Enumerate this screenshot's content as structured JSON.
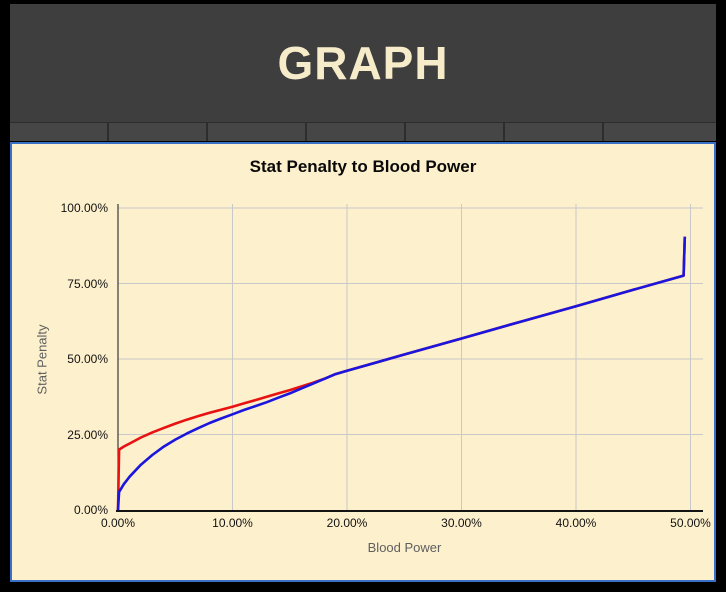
{
  "header": {
    "title": "GRAPH",
    "tab_count": 7
  },
  "colors": {
    "page_background": "#000000",
    "header_background": "#3e3e3e",
    "header_title": "#f7ecc9",
    "tab_cell": "#464646",
    "tab_divider": "#2d2d2d",
    "panel_background": "#fdf0cd",
    "panel_border": "#3a6fc8",
    "gridline": "#c9c9c9",
    "y_axis_line": "#3a3a3a",
    "x_axis_line": "#141414",
    "tick_label": "#121212",
    "axis_title": "#5f5f5f"
  },
  "chart_data": {
    "type": "line",
    "title": "Stat Penalty to Blood Power",
    "xlabel": "Blood Power",
    "ylabel": "Stat Penalty",
    "xlim": [
      0,
      50.5
    ],
    "ylim": [
      0,
      100
    ],
    "grid": true,
    "legend_position": "none",
    "x_ticks": {
      "values": [
        0,
        10,
        20,
        30,
        40,
        50
      ],
      "labels": [
        "0.00%",
        "10.00%",
        "20.00%",
        "30.00%",
        "40.00%",
        "50.00%"
      ]
    },
    "y_ticks": {
      "values": [
        0,
        25,
        50,
        75,
        100
      ],
      "labels": [
        "0.00%",
        "25.00%",
        "50.00%",
        "75.00%",
        "100.00%"
      ]
    },
    "series": [
      {
        "name": "red-penalty-curve",
        "color": "#e81212",
        "points": [
          [
            0,
            0
          ],
          [
            0.1,
            20
          ],
          [
            0.5,
            21
          ],
          [
            1,
            22
          ],
          [
            2,
            24
          ],
          [
            3,
            25.7
          ],
          [
            4,
            27.2
          ],
          [
            5,
            28.6
          ],
          [
            6,
            29.9
          ],
          [
            7,
            31.1
          ],
          [
            8,
            32.2
          ],
          [
            9,
            33.2
          ],
          [
            10,
            34.2
          ],
          [
            11,
            35.3
          ],
          [
            12,
            36.4
          ],
          [
            13,
            37.5
          ],
          [
            14,
            38.6
          ],
          [
            15,
            39.7
          ],
          [
            16,
            40.9
          ],
          [
            17,
            42.1
          ],
          [
            18,
            43.4
          ],
          [
            19,
            45
          ],
          [
            20,
            46.1
          ],
          [
            25,
            51.5
          ],
          [
            30,
            56.8
          ],
          [
            35,
            62.2
          ],
          [
            40,
            67.5
          ],
          [
            45,
            72.9
          ],
          [
            49.4,
            77.6
          ],
          [
            49.5,
            90.5
          ]
        ]
      },
      {
        "name": "blue-penalty-curve",
        "color": "#1b16dd",
        "points": [
          [
            0,
            0
          ],
          [
            0.1,
            6
          ],
          [
            0.5,
            8.5
          ],
          [
            1,
            11
          ],
          [
            2,
            15
          ],
          [
            3,
            18.2
          ],
          [
            4,
            21
          ],
          [
            5,
            23.3
          ],
          [
            6,
            25.3
          ],
          [
            7,
            27.1
          ],
          [
            8,
            28.8
          ],
          [
            9,
            30.3
          ],
          [
            10,
            31.7
          ],
          [
            11,
            33.1
          ],
          [
            12,
            34.4
          ],
          [
            13,
            35.7
          ],
          [
            14,
            37.2
          ],
          [
            15,
            38.6
          ],
          [
            16,
            40.2
          ],
          [
            17,
            41.8
          ],
          [
            18,
            43.4
          ],
          [
            19,
            45
          ],
          [
            20,
            46.1
          ],
          [
            25,
            51.5
          ],
          [
            30,
            56.8
          ],
          [
            35,
            62.2
          ],
          [
            40,
            67.5
          ],
          [
            45,
            72.9
          ],
          [
            49.4,
            77.6
          ],
          [
            49.5,
            90.5
          ]
        ]
      }
    ]
  }
}
